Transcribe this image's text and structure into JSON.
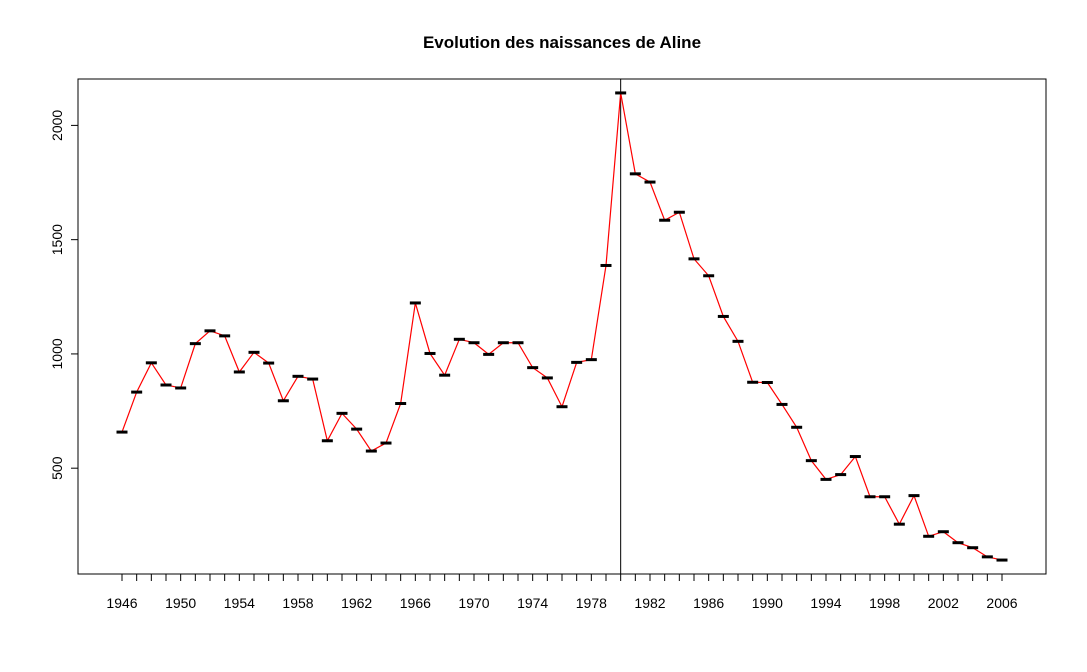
{
  "chart_data": {
    "type": "line",
    "title": "Evolution des naissances de Aline",
    "xlabel": "",
    "ylabel": "",
    "x": [
      1946,
      1947,
      1948,
      1949,
      1950,
      1951,
      1952,
      1953,
      1954,
      1955,
      1956,
      1957,
      1958,
      1959,
      1960,
      1961,
      1962,
      1963,
      1964,
      1965,
      1966,
      1967,
      1968,
      1969,
      1970,
      1971,
      1972,
      1973,
      1974,
      1975,
      1976,
      1977,
      1978,
      1979,
      1980,
      1981,
      1982,
      1983,
      1984,
      1985,
      1986,
      1987,
      1988,
      1989,
      1990,
      1991,
      1992,
      1993,
      1994,
      1995,
      1996,
      1997,
      1998,
      1999,
      2000,
      2001,
      2002,
      2003,
      2004,
      2005,
      2006
    ],
    "series": [
      {
        "values": [
          658,
          833,
          961,
          864,
          851,
          1045,
          1101,
          1079,
          921,
          1007,
          960,
          795,
          902,
          890,
          620,
          740,
          671,
          575,
          610,
          783,
          1223,
          1002,
          907,
          1064,
          1049,
          998,
          1049,
          1049,
          940,
          895,
          769,
          963,
          975,
          1387,
          2142,
          1788,
          1752,
          1585,
          1620,
          1416,
          1342,
          1164,
          1055,
          876,
          875,
          779,
          679,
          533,
          451,
          472,
          551,
          375,
          375,
          255,
          380,
          202,
          222,
          174,
          152,
          112,
          98
        ]
      }
    ],
    "marker": "horizontal bar",
    "reference_line_x": 1980,
    "xlim": [
      1943,
      2009
    ],
    "ylim": [
      37,
      2203
    ],
    "x_ticks": [
      1946,
      1950,
      1954,
      1958,
      1962,
      1966,
      1970,
      1974,
      1978,
      1982,
      1986,
      1990,
      1994,
      1998,
      2002,
      2006
    ],
    "y_ticks": [
      500,
      1000,
      1500,
      2000
    ],
    "line_color": "#ff0000",
    "marker_color": "#000000",
    "grid": false,
    "legend": "none"
  }
}
